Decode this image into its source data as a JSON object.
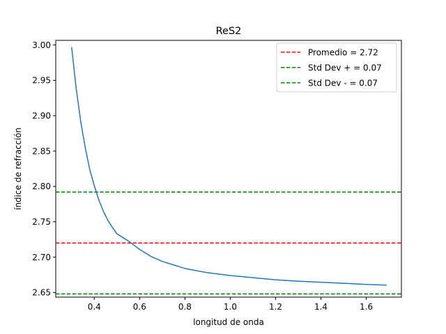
{
  "chart_data": {
    "type": "line",
    "title": "ReS2",
    "xlabel": "longitud de onda",
    "ylabel": "índice de refracción",
    "xlim": [
      0.23,
      1.755
    ],
    "ylim": [
      2.6435,
      3.0065
    ],
    "xticks": [
      0.4,
      0.6,
      0.8,
      1.0,
      1.2,
      1.4,
      1.6
    ],
    "xtick_labels": [
      "0.4",
      "0.6",
      "0.8",
      "1.0",
      "1.2",
      "1.4",
      "1.6"
    ],
    "yticks": [
      2.65,
      2.7,
      2.75,
      2.8,
      2.85,
      2.9,
      2.95,
      3.0
    ],
    "ytick_labels": [
      "2.65",
      "2.70",
      "2.75",
      "2.80",
      "2.85",
      "2.90",
      "2.95",
      "3.00"
    ],
    "grid": false,
    "legend_position": "top-right",
    "series": [
      {
        "color": "#1f77b4",
        "style": "solid",
        "x": [
          0.3,
          0.32,
          0.34,
          0.36,
          0.38,
          0.4,
          0.42,
          0.44,
          0.46,
          0.48,
          0.5,
          0.55,
          0.6,
          0.65,
          0.7,
          0.8,
          0.9,
          1.0,
          1.1,
          1.2,
          1.3,
          1.4,
          1.5,
          1.6,
          1.69
        ],
        "y": [
          2.997,
          2.939,
          2.892,
          2.855,
          2.824,
          2.801,
          2.781,
          2.765,
          2.752,
          2.742,
          2.733,
          2.723,
          2.711,
          2.701,
          2.694,
          2.684,
          2.678,
          2.674,
          2.671,
          2.668,
          2.666,
          2.6645,
          2.663,
          2.6615,
          2.6605
        ]
      }
    ],
    "hlines": [
      {
        "name": "Promedio = 2.72",
        "y": 2.72,
        "color": "#ff0000",
        "style": "dashed"
      },
      {
        "name": "Std Dev + = 0.07",
        "y": 2.792,
        "color": "#008000",
        "style": "dashed"
      },
      {
        "name": "Std Dev - = 0.07",
        "y": 2.648,
        "color": "#008000",
        "style": "dashed"
      }
    ]
  }
}
